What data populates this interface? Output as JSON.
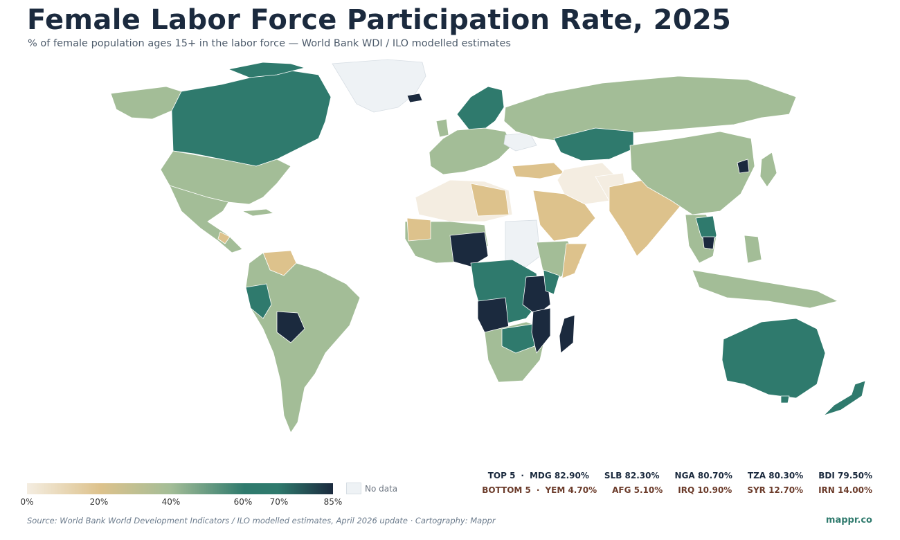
{
  "title": "Female Labor Force Participation Rate, 2025",
  "subtitle": "% of female population ages 15+ in the labor force — World Bank WDI / ILO modelled estimates",
  "legend": {
    "ticks": [
      "0%",
      "20%",
      "40%",
      "60%",
      "70%",
      "85%"
    ],
    "tick_values": [
      0,
      20,
      40,
      60,
      70,
      85
    ],
    "max": 85,
    "no_data_label": "No data",
    "colors": {
      "low": "#f4ede1",
      "mid_low": "#ddc28c",
      "mid": "#a3bd97",
      "high": "#2f7a6d",
      "top": "#1b2a3e",
      "no_data": "#eef2f5"
    }
  },
  "rankings": {
    "top_label": "TOP 5",
    "top": [
      {
        "code": "MDG",
        "value": "82.90%"
      },
      {
        "code": "SLB",
        "value": "82.30%"
      },
      {
        "code": "NGA",
        "value": "80.70%"
      },
      {
        "code": "TZA",
        "value": "80.30%"
      },
      {
        "code": "BDI",
        "value": "79.50%"
      }
    ],
    "bottom_label": "BOTTOM 5",
    "bottom": [
      {
        "code": "YEM",
        "value": "4.70%"
      },
      {
        "code": "AFG",
        "value": "5.10%"
      },
      {
        "code": "IRQ",
        "value": "10.90%"
      },
      {
        "code": "SYR",
        "value": "12.70%"
      },
      {
        "code": "IRN",
        "value": "14.00%"
      }
    ]
  },
  "source": "Source: World Bank World Development Indicators / ILO modelled estimates, April 2026 update · Cartography: Mappr",
  "brand": "mappr.co"
}
